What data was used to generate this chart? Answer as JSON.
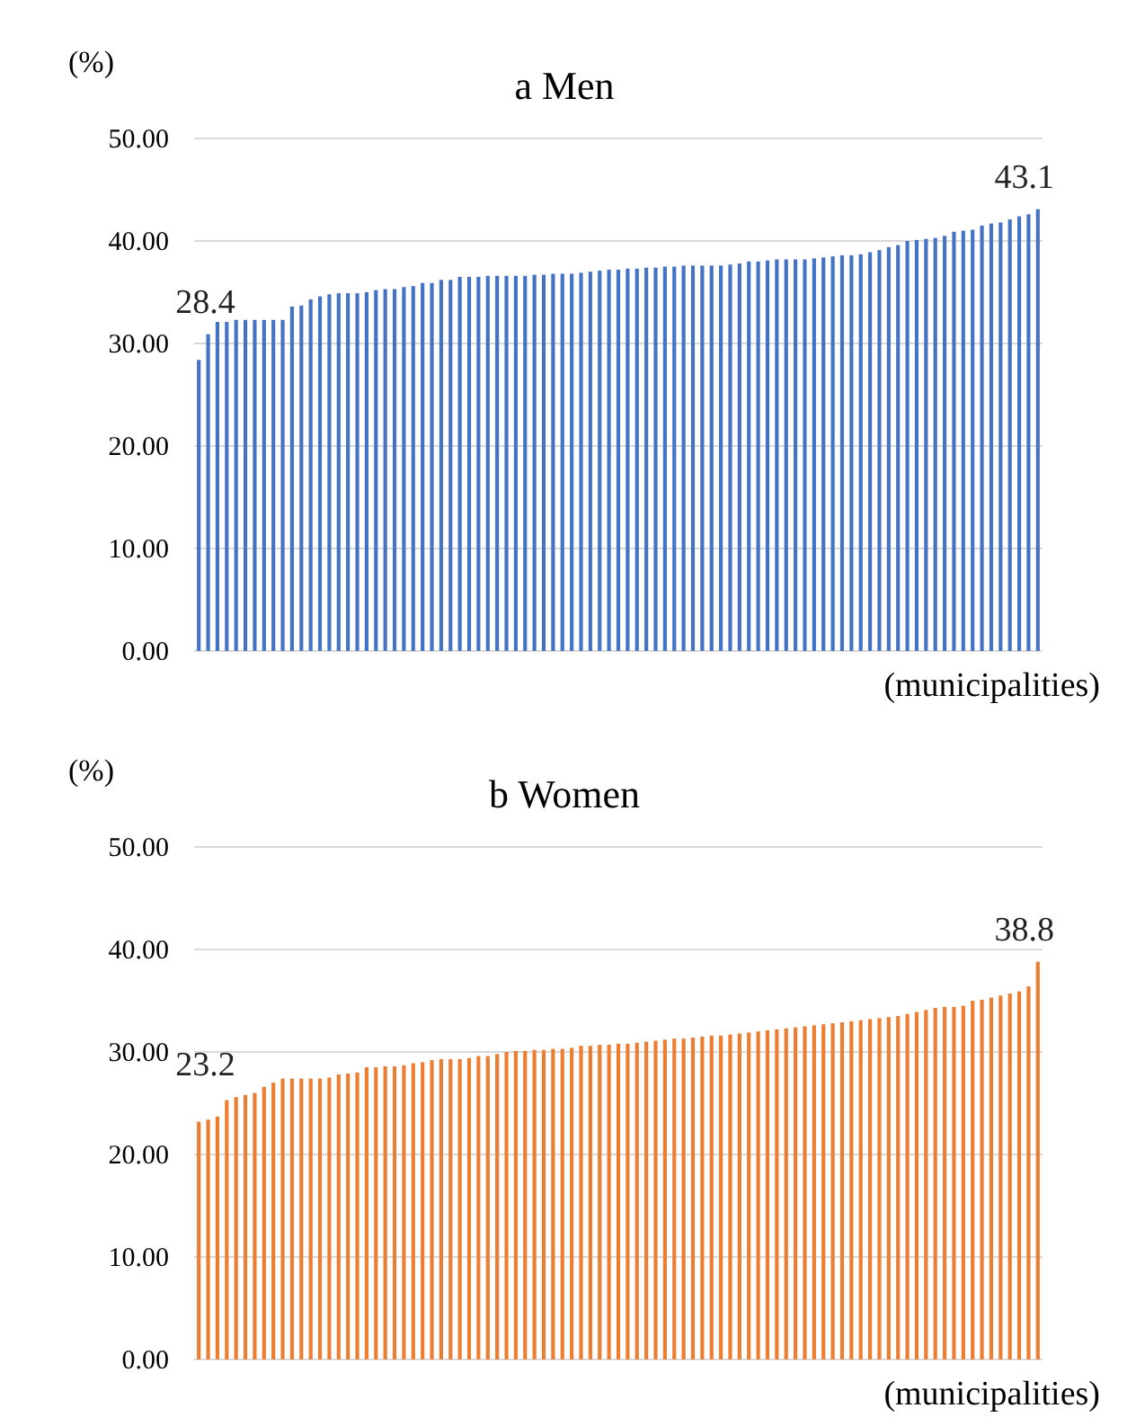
{
  "chart_data": [
    {
      "type": "bar",
      "title": "a  Men",
      "ylabel": "(%)",
      "xlabel": "(municipalities)",
      "categories": [
        null,
        null,
        null,
        null,
        null,
        null,
        null,
        null,
        null,
        null,
        null,
        null,
        null,
        null,
        null,
        null,
        null,
        null,
        null,
        null,
        null,
        null,
        null,
        null,
        null,
        null,
        null,
        null,
        null,
        null,
        null,
        null,
        null,
        null,
        null,
        null,
        null,
        null,
        null,
        null,
        null,
        null,
        null,
        null,
        null,
        null,
        null,
        null,
        null,
        null,
        null,
        null,
        null,
        null,
        null,
        null,
        null,
        null,
        null,
        null,
        null,
        null,
        null,
        null,
        null,
        null,
        null,
        null,
        null,
        null,
        null,
        null,
        null,
        null,
        null,
        null,
        null,
        null,
        null,
        null,
        null,
        null,
        null,
        null,
        null,
        null,
        null,
        null,
        null,
        null,
        null
      ],
      "values": [
        28.4,
        30.9,
        32.1,
        32.1,
        32.3,
        32.3,
        32.3,
        32.3,
        32.3,
        32.3,
        33.6,
        33.7,
        34.3,
        34.6,
        34.8,
        34.9,
        34.9,
        34.9,
        35.0,
        35.2,
        35.3,
        35.3,
        35.5,
        35.6,
        35.9,
        35.9,
        36.2,
        36.2,
        36.5,
        36.5,
        36.5,
        36.6,
        36.6,
        36.6,
        36.6,
        36.6,
        36.7,
        36.7,
        36.8,
        36.8,
        36.8,
        36.9,
        37.0,
        37.1,
        37.2,
        37.2,
        37.3,
        37.3,
        37.4,
        37.4,
        37.5,
        37.5,
        37.6,
        37.6,
        37.6,
        37.6,
        37.6,
        37.7,
        37.8,
        38.0,
        38.0,
        38.1,
        38.2,
        38.2,
        38.2,
        38.2,
        38.3,
        38.4,
        38.5,
        38.6,
        38.6,
        38.7,
        38.9,
        39.1,
        39.4,
        39.6,
        40.0,
        40.1,
        40.2,
        40.3,
        40.5,
        40.9,
        41.0,
        41.1,
        41.5,
        41.7,
        41.8,
        42.1,
        42.4,
        42.6,
        43.1
      ],
      "color": "#4472c4",
      "ylim": [
        0,
        50
      ],
      "yticks": [
        {
          "value": 0,
          "label": "0.00"
        },
        {
          "value": 10,
          "label": "10.00"
        },
        {
          "value": 20,
          "label": "20.00"
        },
        {
          "value": 30,
          "label": "30.00"
        },
        {
          "value": 40,
          "label": "40.00"
        },
        {
          "value": 50,
          "label": "50.00"
        }
      ],
      "grid": "y",
      "annotations": [
        "28.4",
        "43.1"
      ]
    },
    {
      "type": "bar",
      "title": "b  Women",
      "ylabel": "(%)",
      "xlabel": "(municipalities)",
      "categories": [
        null,
        null,
        null,
        null,
        null,
        null,
        null,
        null,
        null,
        null,
        null,
        null,
        null,
        null,
        null,
        null,
        null,
        null,
        null,
        null,
        null,
        null,
        null,
        null,
        null,
        null,
        null,
        null,
        null,
        null,
        null,
        null,
        null,
        null,
        null,
        null,
        null,
        null,
        null,
        null,
        null,
        null,
        null,
        null,
        null,
        null,
        null,
        null,
        null,
        null,
        null,
        null,
        null,
        null,
        null,
        null,
        null,
        null,
        null,
        null,
        null,
        null,
        null,
        null,
        null,
        null,
        null,
        null,
        null,
        null,
        null,
        null,
        null,
        null,
        null,
        null,
        null,
        null,
        null,
        null,
        null,
        null,
        null,
        null,
        null,
        null,
        null,
        null,
        null,
        null,
        null
      ],
      "values": [
        23.2,
        23.4,
        23.7,
        25.3,
        25.6,
        25.8,
        26.0,
        26.6,
        27.0,
        27.4,
        27.4,
        27.4,
        27.4,
        27.4,
        27.5,
        27.8,
        27.9,
        28.0,
        28.5,
        28.5,
        28.6,
        28.6,
        28.7,
        28.9,
        29.0,
        29.2,
        29.3,
        29.3,
        29.3,
        29.4,
        29.6,
        29.6,
        29.8,
        30.0,
        30.1,
        30.1,
        30.2,
        30.2,
        30.3,
        30.3,
        30.4,
        30.6,
        30.6,
        30.7,
        30.7,
        30.8,
        30.8,
        30.9,
        31.0,
        31.1,
        31.2,
        31.3,
        31.3,
        31.4,
        31.5,
        31.6,
        31.6,
        31.7,
        31.8,
        31.9,
        32.0,
        32.1,
        32.2,
        32.3,
        32.4,
        32.5,
        32.6,
        32.7,
        32.8,
        32.9,
        33.0,
        33.1,
        33.2,
        33.3,
        33.4,
        33.5,
        33.7,
        33.9,
        34.1,
        34.3,
        34.4,
        34.4,
        34.5,
        35.0,
        35.1,
        35.3,
        35.5,
        35.7,
        35.9,
        36.4,
        38.8
      ],
      "color": "#ed7d31",
      "ylim": [
        0,
        50
      ],
      "yticks": [
        {
          "value": 0,
          "label": "0.00"
        },
        {
          "value": 10,
          "label": "10.00"
        },
        {
          "value": 20,
          "label": "20.00"
        },
        {
          "value": 30,
          "label": "30.00"
        },
        {
          "value": 40,
          "label": "40.00"
        },
        {
          "value": 50,
          "label": "50.00"
        }
      ],
      "grid": "y",
      "annotations": [
        "23.2",
        "38.8"
      ]
    }
  ]
}
